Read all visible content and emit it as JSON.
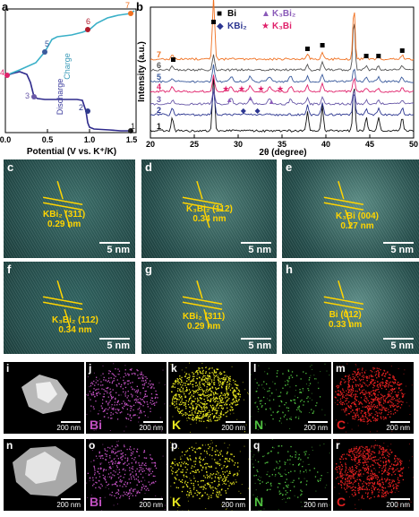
{
  "panel_a": {
    "letter": "a",
    "xlabel": "Potential (V vs. K⁺/K)",
    "xticks": [
      "0.0",
      "0.5",
      "1.0",
      "1.5"
    ],
    "charge_label": "Charge",
    "discharge_label": "Discharge",
    "points": [
      {
        "n": "1",
        "color": "#222222"
      },
      {
        "n": "2",
        "color": "#2e3a8c"
      },
      {
        "n": "3",
        "color": "#6a5aa8"
      },
      {
        "n": "4",
        "color": "#e0206a"
      },
      {
        "n": "5",
        "color": "#3a5a9c"
      },
      {
        "n": "6",
        "color": "#b01a2a"
      },
      {
        "n": "7",
        "color": "#f07020"
      }
    ]
  },
  "chart_data": {
    "type": "line",
    "title": "",
    "xlabel": "2θ (degree)",
    "ylabel": "Intensity (a.u.)",
    "xlim": [
      20,
      50
    ],
    "xticks": [
      "20",
      "25",
      "30",
      "35",
      "40",
      "45",
      "50"
    ],
    "series": [
      {
        "name": "1",
        "color": "#111111"
      },
      {
        "name": "2",
        "color": "#2b3590"
      },
      {
        "name": "3",
        "color": "#6a5aa8"
      },
      {
        "name": "4",
        "color": "#e0206a"
      },
      {
        "name": "5",
        "color": "#3a5a9c"
      },
      {
        "name": "6",
        "color": "#555555"
      },
      {
        "name": "7",
        "color": "#f07020"
      }
    ],
    "peaks": [
      {
        "x": 22.5,
        "h": 0.25
      },
      {
        "x": 27.2,
        "h": 1.0
      },
      {
        "x": 37.9,
        "h": 0.35
      },
      {
        "x": 39.6,
        "h": 0.45
      },
      {
        "x": 44.6,
        "h": 0.25
      },
      {
        "x": 46.0,
        "h": 0.25
      },
      {
        "x": 48.7,
        "h": 0.25
      },
      {
        "x": 43.2,
        "h": 0.85
      }
    ]
  },
  "panel_b": {
    "letter": "b",
    "legend": [
      {
        "symbol": "■",
        "label": "Bi",
        "color": "#000000"
      },
      {
        "symbol": "▲",
        "label": "K₃Bi₂",
        "color": "#8a5ab8"
      },
      {
        "symbol": "◆",
        "label": "KBi₂",
        "color": "#2b3590"
      },
      {
        "symbol": "★",
        "label": "K₃Bi",
        "color": "#e0206a"
      }
    ]
  },
  "tem": [
    {
      "letter": "c",
      "line1": "KBi₂ (311)",
      "line2": "0.29 nm",
      "scale": "5 nm",
      "bg": "#3a6b66"
    },
    {
      "letter": "d",
      "line1": "K₃Bi₂ (112)",
      "line2": "0.34 nm",
      "scale": "5 nm",
      "bg": "#4d7b74"
    },
    {
      "letter": "e",
      "line1": "K₃Bi (004)",
      "line2": "0.27 nm",
      "scale": "5 nm",
      "bg": "#5a8a82"
    },
    {
      "letter": "f",
      "line1": "K₃Bi₂ (112)",
      "line2": "0.34 nm",
      "scale": "5 nm",
      "bg": "#2d5f5c"
    },
    {
      "letter": "g",
      "line1": "KBi₂ (311)",
      "line2": "0.29 nm",
      "scale": "5 nm",
      "bg": "#4b7a74"
    },
    {
      "letter": "h",
      "line1": "Bi (012)",
      "line2": "0.33 nm",
      "scale": "5 nm",
      "bg": "#5b8a84"
    }
  ],
  "eds": [
    {
      "letter": "i",
      "element": "",
      "scale": "200 nm",
      "color": "#d8d8d8",
      "type": "haadf"
    },
    {
      "letter": "j",
      "element": "Bi",
      "scale": "200 nm",
      "color": "#c050c0",
      "type": "map"
    },
    {
      "letter": "k",
      "element": "K",
      "scale": "200 nm",
      "color": "#e6e620",
      "type": "map"
    },
    {
      "letter": "l",
      "element": "N",
      "scale": "200 nm",
      "color": "#50c040",
      "type": "map"
    },
    {
      "letter": "m",
      "element": "C",
      "scale": "200 nm",
      "color": "#e02020",
      "type": "map"
    },
    {
      "letter": "n",
      "element": "",
      "scale": "200 nm",
      "color": "#d8d8d8",
      "type": "haadf"
    },
    {
      "letter": "o",
      "element": "Bi",
      "scale": "200 nm",
      "color": "#c050c0",
      "type": "map"
    },
    {
      "letter": "p",
      "element": "K",
      "scale": "200 nm",
      "color": "#e6e620",
      "type": "map"
    },
    {
      "letter": "q",
      "element": "N",
      "scale": "200 nm",
      "color": "#50c040",
      "type": "map"
    },
    {
      "letter": "r",
      "element": "C",
      "scale": "200 nm",
      "color": "#e02020",
      "type": "map"
    }
  ]
}
